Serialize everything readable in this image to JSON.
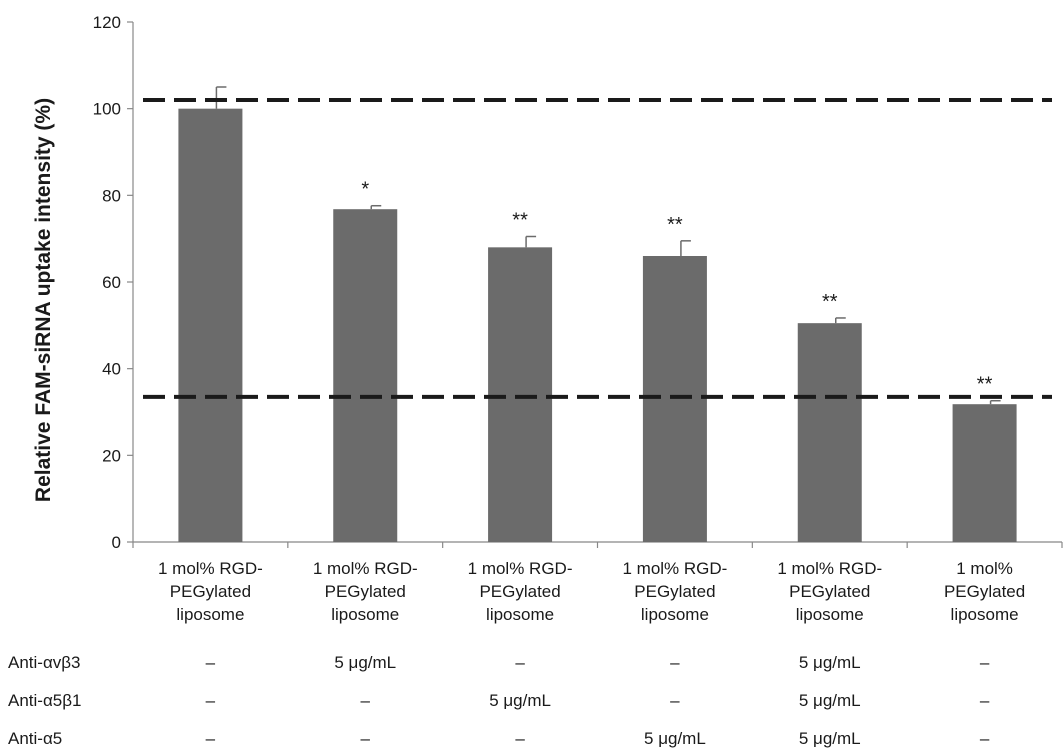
{
  "chart_data": {
    "type": "bar",
    "ylabel": "Relative FAM-siRNA uptake intensity (%)",
    "ylim": [
      0,
      120
    ],
    "yticks": [
      0,
      20,
      40,
      60,
      80,
      100,
      120
    ],
    "categories": [
      [
        "1 mol% RGD-",
        "PEGylated",
        "liposome"
      ],
      [
        "1 mol% RGD-",
        "PEGylated",
        "liposome"
      ],
      [
        "1 mol% RGD-",
        "PEGylated",
        "liposome"
      ],
      [
        "1 mol% RGD-",
        "PEGylated",
        "liposome"
      ],
      [
        "1 mol% RGD-",
        "PEGylated",
        "liposome"
      ],
      [
        "1 mol%",
        "PEGylated",
        "liposome"
      ]
    ],
    "values": [
      100,
      76.8,
      68,
      66,
      50.5,
      31.8
    ],
    "errors": [
      5,
      0.8,
      2.5,
      3.5,
      1.2,
      0.8
    ],
    "significance": [
      "",
      "*",
      "**",
      "**",
      "**",
      "**"
    ],
    "reference_lines": [
      102,
      33.5
    ],
    "bar_color": "#6b6b6b",
    "grid": false,
    "treatment_table": [
      {
        "label": "Anti-αvβ3",
        "values": [
          "–",
          "5 μg/mL",
          "–",
          "–",
          "5 μg/mL",
          "–"
        ]
      },
      {
        "label": "Anti-α5β1",
        "values": [
          "–",
          "–",
          "5 μg/mL",
          "–",
          "5 μg/mL",
          "–"
        ]
      },
      {
        "label": "Anti-α5",
        "values": [
          "–",
          "–",
          "–",
          "5 μg/mL",
          "5 μg/mL",
          "–"
        ]
      }
    ]
  }
}
